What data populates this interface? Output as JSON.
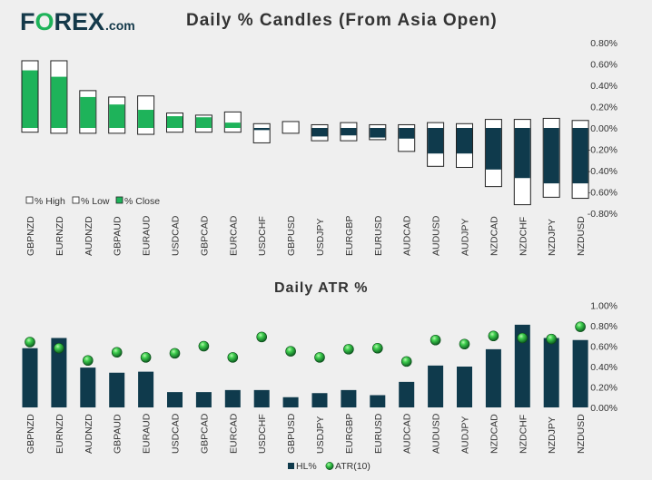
{
  "brand": {
    "logo_text": "FOREX.com",
    "colors": {
      "navy": "#14394a",
      "green": "#1eb35a"
    }
  },
  "chart_data": [
    {
      "type": "candlestick",
      "title": "Daily % Candles (From Asia Open)",
      "categories": [
        "GBPNZD",
        "EURNZD",
        "AUDNZD",
        "GBPAUD",
        "EURAUD",
        "USDCAD",
        "GBPCAD",
        "EURCAD",
        "USDCHF",
        "GBPUSD",
        "USDJPY",
        "EURGBP",
        "EURUSD",
        "AUDCAD",
        "AUDUSD",
        "AUDJPY",
        "NZDCAD",
        "NZDCHF",
        "NZDJPY",
        "NZDUSD"
      ],
      "series": [
        {
          "name": "% High",
          "values": [
            0.63,
            0.63,
            0.35,
            0.29,
            0.3,
            0.14,
            0.12,
            0.15,
            0.04,
            0.06,
            0.03,
            0.05,
            0.03,
            0.03,
            0.05,
            0.04,
            0.08,
            0.08,
            0.09,
            0.07
          ]
        },
        {
          "name": "% Low",
          "values": [
            -0.04,
            -0.05,
            -0.05,
            -0.05,
            -0.06,
            -0.04,
            -0.04,
            -0.04,
            -0.14,
            -0.05,
            -0.12,
            -0.12,
            -0.11,
            -0.22,
            -0.36,
            -0.37,
            -0.55,
            -0.72,
            -0.65,
            -0.66
          ]
        },
        {
          "name": "% Close",
          "values": [
            0.54,
            0.48,
            0.29,
            0.22,
            0.17,
            0.11,
            0.1,
            0.05,
            -0.02,
            0.0,
            -0.08,
            -0.07,
            -0.09,
            -0.1,
            -0.24,
            -0.24,
            -0.39,
            -0.47,
            -0.52,
            -0.52
          ]
        }
      ],
      "ylim": [
        -0.8,
        0.8
      ],
      "yticks": [
        "0.80%",
        "0.60%",
        "0.40%",
        "0.20%",
        "0.00%",
        "-0.20%",
        "-0.40%",
        "-0.60%",
        "-0.80%"
      ],
      "legend_position": "bottom-left",
      "colors": {
        "up": "#1eb35a",
        "down": "#0f3a4c",
        "box": "#ffffff"
      }
    },
    {
      "type": "bar+scatter",
      "title": "Daily ATR %",
      "categories": [
        "GBPNZD",
        "EURNZD",
        "AUDNZD",
        "GBPAUD",
        "EURAUD",
        "USDCAD",
        "GBPCAD",
        "EURCAD",
        "USDCHF",
        "GBPUSD",
        "USDJPY",
        "EURGBP",
        "EURUSD",
        "AUDCAD",
        "AUDUSD",
        "AUDJPY",
        "NZDCAD",
        "NZDCHF",
        "NZDJPY",
        "NZDUSD"
      ],
      "series": [
        {
          "name": "HL%",
          "type": "bar",
          "values": [
            0.58,
            0.68,
            0.39,
            0.34,
            0.35,
            0.15,
            0.15,
            0.17,
            0.17,
            0.1,
            0.14,
            0.17,
            0.12,
            0.25,
            0.41,
            0.4,
            0.57,
            0.81,
            0.68,
            0.66
          ]
        },
        {
          "name": "ATR(10)",
          "type": "scatter",
          "values": [
            0.64,
            0.58,
            0.46,
            0.54,
            0.49,
            0.53,
            0.6,
            0.49,
            0.69,
            0.55,
            0.49,
            0.57,
            0.58,
            0.45,
            0.66,
            0.62,
            0.7,
            0.68,
            0.67,
            0.79
          ]
        }
      ],
      "ylim": [
        0,
        1.0
      ],
      "yticks": [
        "1.00%",
        "0.80%",
        "0.60%",
        "0.40%",
        "0.20%",
        "0.00%"
      ],
      "legend_position": "bottom-center",
      "colors": {
        "bar": "#0f3a4c",
        "marker": "#1eb35a"
      }
    }
  ]
}
